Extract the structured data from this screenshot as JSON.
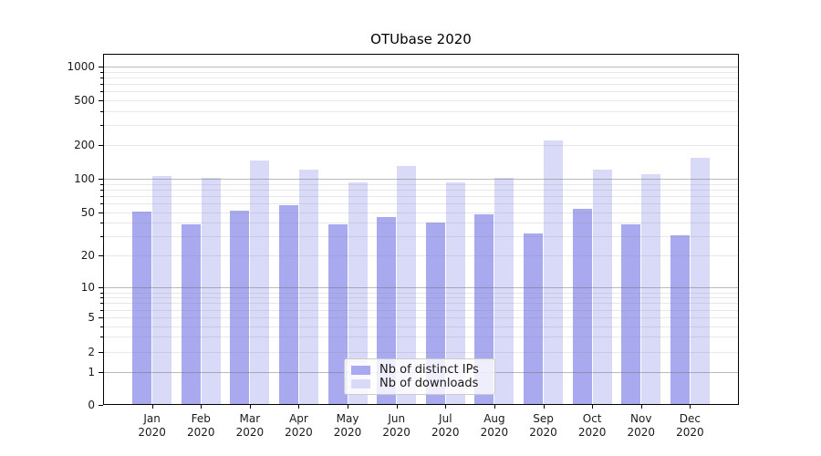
{
  "title": "OTUbase 2020",
  "chart_data": {
    "type": "bar",
    "y_scale": "symlog",
    "grid": "both",
    "legend_position": "lower-center",
    "categories": [
      "Jan",
      "Feb",
      "Mar",
      "Apr",
      "May",
      "Jun",
      "Jul",
      "Aug",
      "Sep",
      "Oct",
      "Nov",
      "Dec"
    ],
    "category_year": "2020",
    "series": [
      {
        "name": "Nb of distinct IPs",
        "color": "#a9a9f0",
        "values": [
          51,
          39,
          52,
          58,
          39,
          45,
          40,
          48,
          32,
          54,
          39,
          31
        ]
      },
      {
        "name": "Nb of downloads",
        "color": "#d9d9f8",
        "values": [
          105,
          101,
          145,
          120,
          93,
          130,
          92,
          102,
          220,
          120,
          109,
          153
        ]
      }
    ],
    "y_ticks": [
      0,
      1,
      2,
      5,
      10,
      20,
      50,
      100,
      200,
      500,
      1000
    ],
    "ylim": [
      0,
      1300
    ],
    "xlim": [
      -1,
      12
    ]
  },
  "colors": {
    "axis": "#000000",
    "text": "#1a1a1a",
    "major_grid": "#b0b0b0",
    "minor_grid": "#e6e6e6",
    "legend_border": "#cccccc",
    "legend_background": "rgba(255,255,255,0.8)"
  }
}
